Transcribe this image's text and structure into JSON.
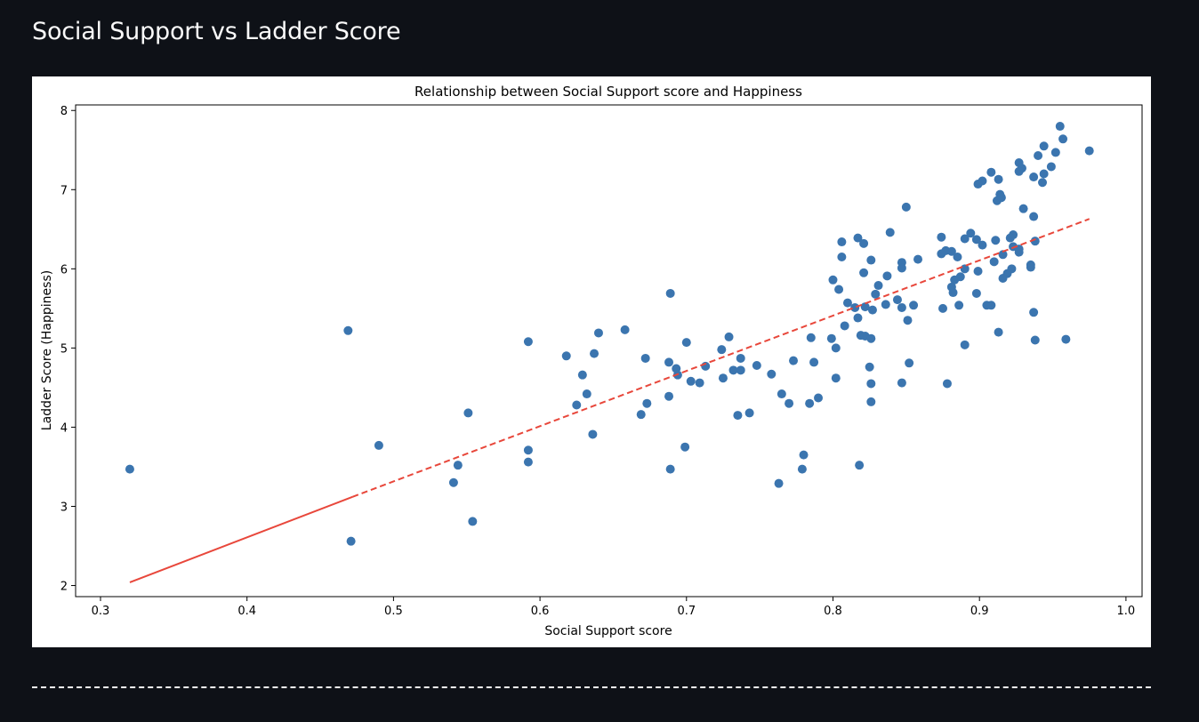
{
  "page": {
    "heading": "Social Support vs Ladder Score"
  },
  "colors": {
    "background": "#0e1117",
    "points": "#3b75af",
    "trendline": "#e8473b"
  },
  "chart_data": {
    "type": "scatter",
    "title": "Relationship between Social Support score and Happiness",
    "xlabel": "Social Support score",
    "ylabel": "Ladder Score (Happiness)",
    "xlim": [
      0.283,
      1.011
    ],
    "ylim": [
      1.86,
      8.07
    ],
    "xticks": [
      0.3,
      0.4,
      0.5,
      0.6,
      0.7,
      0.8,
      0.9,
      1.0
    ],
    "xtick_labels": [
      "0.3",
      "0.4",
      "0.5",
      "0.6",
      "0.7",
      "0.8",
      "0.9",
      "1.0"
    ],
    "yticks": [
      2,
      3,
      4,
      5,
      6,
      7,
      8
    ],
    "ytick_labels": [
      "2",
      "3",
      "4",
      "5",
      "6",
      "7",
      "8"
    ],
    "grid": false,
    "trendline": {
      "style": "solid-then-dashed",
      "points": [
        [
          0.32,
          2.04
        ],
        [
          0.472,
          3.12
        ],
        [
          0.975,
          6.63
        ]
      ]
    },
    "points": [
      [
        0.955,
        7.8
      ],
      [
        0.957,
        7.64
      ],
      [
        0.975,
        7.49
      ],
      [
        0.944,
        7.55
      ],
      [
        0.952,
        7.47
      ],
      [
        0.94,
        7.43
      ],
      [
        0.927,
        7.34
      ],
      [
        0.949,
        7.29
      ],
      [
        0.929,
        7.27
      ],
      [
        0.908,
        7.22
      ],
      [
        0.944,
        7.2
      ],
      [
        0.927,
        7.23
      ],
      [
        0.937,
        7.16
      ],
      [
        0.943,
        7.09
      ],
      [
        0.913,
        7.13
      ],
      [
        0.902,
        7.11
      ],
      [
        0.899,
        7.07
      ],
      [
        0.914,
        6.94
      ],
      [
        0.912,
        6.86
      ],
      [
        0.915,
        6.9
      ],
      [
        0.85,
        6.78
      ],
      [
        0.93,
        6.76
      ],
      [
        0.937,
        6.66
      ],
      [
        0.839,
        6.46
      ],
      [
        0.894,
        6.45
      ],
      [
        0.923,
        6.43
      ],
      [
        0.921,
        6.39
      ],
      [
        0.817,
        6.39
      ],
      [
        0.874,
        6.4
      ],
      [
        0.89,
        6.38
      ],
      [
        0.898,
        6.37
      ],
      [
        0.911,
        6.36
      ],
      [
        0.938,
        6.35
      ],
      [
        0.806,
        6.34
      ],
      [
        0.821,
        6.32
      ],
      [
        0.902,
        6.3
      ],
      [
        0.923,
        6.28
      ],
      [
        0.927,
        6.25
      ],
      [
        0.877,
        6.23
      ],
      [
        0.881,
        6.22
      ],
      [
        0.927,
        6.21
      ],
      [
        0.874,
        6.19
      ],
      [
        0.916,
        6.18
      ],
      [
        0.885,
        6.15
      ],
      [
        0.806,
        6.15
      ],
      [
        0.858,
        6.12
      ],
      [
        0.826,
        6.11
      ],
      [
        0.91,
        6.09
      ],
      [
        0.847,
        6.08
      ],
      [
        0.935,
        6.05
      ],
      [
        0.935,
        6.02
      ],
      [
        0.847,
        6.01
      ],
      [
        0.89,
        6.0
      ],
      [
        0.922,
        6.0
      ],
      [
        0.899,
        5.97
      ],
      [
        0.821,
        5.95
      ],
      [
        0.919,
        5.94
      ],
      [
        0.837,
        5.91
      ],
      [
        0.887,
        5.9
      ],
      [
        0.916,
        5.88
      ],
      [
        0.883,
        5.86
      ],
      [
        0.8,
        5.86
      ],
      [
        0.831,
        5.79
      ],
      [
        0.881,
        5.77
      ],
      [
        0.804,
        5.74
      ],
      [
        0.882,
        5.7
      ],
      [
        0.689,
        5.69
      ],
      [
        0.898,
        5.69
      ],
      [
        0.829,
        5.68
      ],
      [
        0.844,
        5.61
      ],
      [
        0.81,
        5.57
      ],
      [
        0.836,
        5.55
      ],
      [
        0.905,
        5.54
      ],
      [
        0.908,
        5.54
      ],
      [
        0.886,
        5.54
      ],
      [
        0.855,
        5.54
      ],
      [
        0.822,
        5.52
      ],
      [
        0.815,
        5.51
      ],
      [
        0.827,
        5.48
      ],
      [
        0.847,
        5.51
      ],
      [
        0.875,
        5.5
      ],
      [
        0.937,
        5.45
      ],
      [
        0.817,
        5.38
      ],
      [
        0.851,
        5.35
      ],
      [
        0.808,
        5.28
      ],
      [
        0.658,
        5.23
      ],
      [
        0.913,
        5.2
      ],
      [
        0.469,
        5.22
      ],
      [
        0.64,
        5.19
      ],
      [
        0.819,
        5.16
      ],
      [
        0.822,
        5.15
      ],
      [
        0.729,
        5.14
      ],
      [
        0.785,
        5.13
      ],
      [
        0.799,
        5.12
      ],
      [
        0.826,
        5.12
      ],
      [
        0.959,
        5.11
      ],
      [
        0.938,
        5.1
      ],
      [
        0.592,
        5.08
      ],
      [
        0.7,
        5.07
      ],
      [
        0.89,
        5.04
      ],
      [
        0.802,
        5.0
      ],
      [
        0.724,
        4.98
      ],
      [
        0.637,
        4.93
      ],
      [
        0.618,
        4.9
      ],
      [
        0.672,
        4.87
      ],
      [
        0.737,
        4.87
      ],
      [
        0.773,
        4.84
      ],
      [
        0.688,
        4.82
      ],
      [
        0.787,
        4.82
      ],
      [
        0.852,
        4.81
      ],
      [
        0.748,
        4.78
      ],
      [
        0.713,
        4.77
      ],
      [
        0.825,
        4.76
      ],
      [
        0.693,
        4.74
      ],
      [
        0.732,
        4.72
      ],
      [
        0.737,
        4.72
      ],
      [
        0.758,
        4.67
      ],
      [
        0.629,
        4.66
      ],
      [
        0.694,
        4.66
      ],
      [
        0.802,
        4.62
      ],
      [
        0.725,
        4.62
      ],
      [
        0.703,
        4.58
      ],
      [
        0.709,
        4.56
      ],
      [
        0.847,
        4.56
      ],
      [
        0.826,
        4.55
      ],
      [
        0.878,
        4.55
      ],
      [
        0.632,
        4.42
      ],
      [
        0.765,
        4.42
      ],
      [
        0.688,
        4.39
      ],
      [
        0.79,
        4.37
      ],
      [
        0.826,
        4.32
      ],
      [
        0.673,
        4.3
      ],
      [
        0.77,
        4.3
      ],
      [
        0.784,
        4.3
      ],
      [
        0.625,
        4.28
      ],
      [
        0.551,
        4.18
      ],
      [
        0.743,
        4.18
      ],
      [
        0.669,
        4.16
      ],
      [
        0.735,
        4.15
      ],
      [
        0.636,
        3.91
      ],
      [
        0.49,
        3.77
      ],
      [
        0.699,
        3.75
      ],
      [
        0.592,
        3.71
      ],
      [
        0.78,
        3.65
      ],
      [
        0.592,
        3.56
      ],
      [
        0.544,
        3.52
      ],
      [
        0.818,
        3.52
      ],
      [
        0.32,
        3.47
      ],
      [
        0.689,
        3.47
      ],
      [
        0.779,
        3.47
      ],
      [
        0.541,
        3.3
      ],
      [
        0.763,
        3.29
      ],
      [
        0.554,
        2.81
      ],
      [
        0.471,
        2.56
      ]
    ]
  }
}
